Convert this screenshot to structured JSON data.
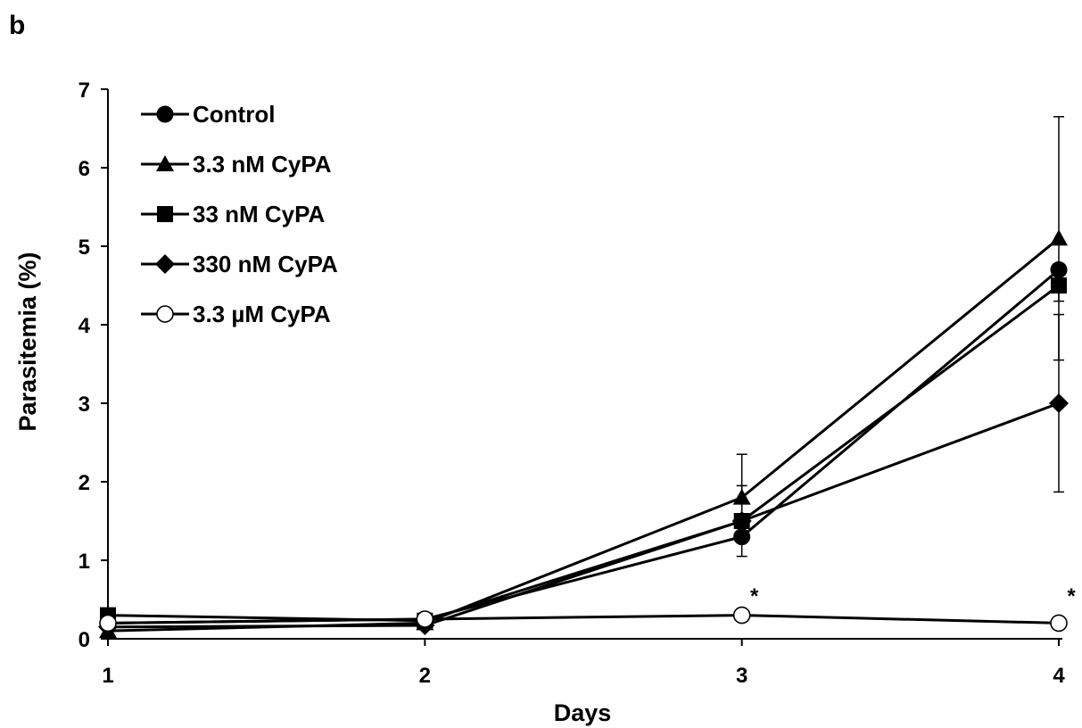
{
  "panel_label": "b",
  "chart_data": {
    "type": "line",
    "title": "",
    "xlabel": "Days",
    "ylabel": "Parasitemia (%)",
    "x": [
      1,
      2,
      3,
      4
    ],
    "x_ticks": [
      "1",
      "2",
      "3",
      "4"
    ],
    "y_ticks": [
      "0",
      "1",
      "2",
      "3",
      "4",
      "5",
      "6",
      "7"
    ],
    "xlim": [
      1,
      4
    ],
    "ylim": [
      0,
      7
    ],
    "grid": false,
    "legend_position": "top-left",
    "series": [
      {
        "name": "Control",
        "marker": "filled-circle",
        "color": "#000000",
        "values": [
          0.2,
          0.25,
          1.3,
          4.7
        ],
        "error": [
          0,
          0,
          0,
          0
        ]
      },
      {
        "name": "3.3 nM CyPA",
        "marker": "filled-triangle",
        "color": "#000000",
        "values": [
          0.1,
          0.2,
          1.8,
          5.1
        ],
        "error": [
          0,
          0,
          0.55,
          1.55
        ]
      },
      {
        "name": "33 nM CyPA",
        "marker": "filled-square",
        "color": "#000000",
        "values": [
          0.3,
          0.23,
          1.5,
          4.5
        ],
        "error": [
          0,
          0,
          0.45,
          0.2
        ]
      },
      {
        "name": "330 nM CyPA",
        "marker": "filled-diamond",
        "color": "#000000",
        "values": [
          0.15,
          0.17,
          1.5,
          3.0
        ],
        "error": [
          0,
          0,
          0,
          1.13
        ]
      },
      {
        "name": "3.3 µM CyPA",
        "marker": "open-circle",
        "color": "#000000",
        "values": [
          0.2,
          0.25,
          0.3,
          0.2
        ],
        "error": [
          0,
          0,
          0,
          0
        ]
      }
    ],
    "annotations": [
      {
        "x": 3,
        "text": "*"
      },
      {
        "x": 4,
        "text": "*"
      }
    ]
  }
}
